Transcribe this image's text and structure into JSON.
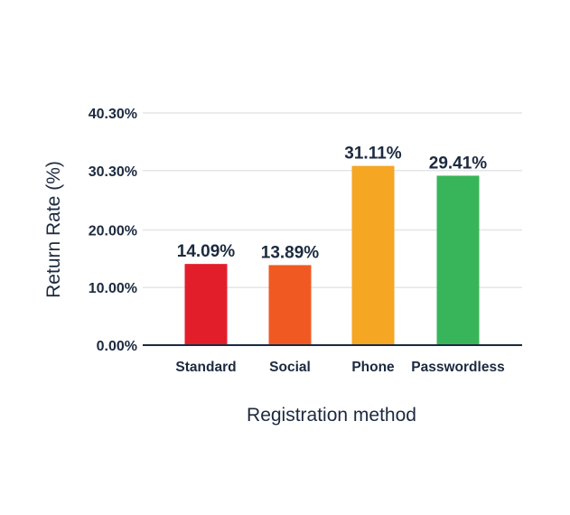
{
  "chart_data": {
    "type": "bar",
    "title": "",
    "xlabel": "Registration method",
    "ylabel": "Return Rate (%)",
    "ylim": [
      0,
      40.3
    ],
    "y_ticks": [
      {
        "value": 0,
        "label": "0.00%"
      },
      {
        "value": 10,
        "label": "10.00%"
      },
      {
        "value": 20,
        "label": "20.00%"
      },
      {
        "value": 30.3,
        "label": "30.30%"
      },
      {
        "value": 40.3,
        "label": "40.30%"
      }
    ],
    "grid": true,
    "categories": [
      "Standard",
      "Social",
      "Phone",
      "Passwordless"
    ],
    "values": [
      14.09,
      13.89,
      31.11,
      29.41
    ],
    "data_labels": [
      "14.09%",
      "13.89%",
      "31.11%",
      "29.41%"
    ],
    "colors": [
      "#e31e2b",
      "#f05a22",
      "#f5a623",
      "#38b55a"
    ]
  }
}
